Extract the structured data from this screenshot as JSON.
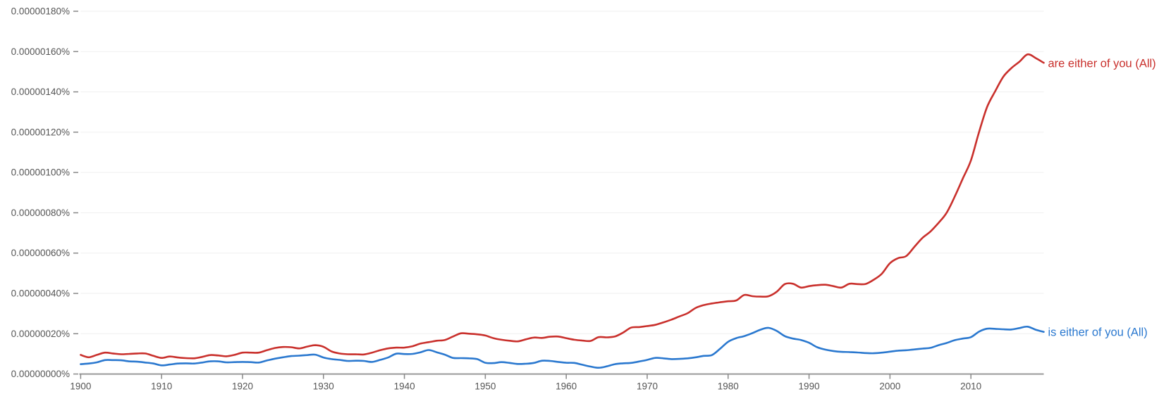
{
  "chart_data": {
    "type": "line",
    "title": "",
    "xlabel": "",
    "ylabel": "",
    "xlim": [
      1900,
      2019
    ],
    "ylim": [
      0,
      1.8e-06
    ],
    "y_unit": "%",
    "grid": true,
    "legend": "line-end labels",
    "x_ticks": [
      "1900",
      "1910",
      "1920",
      "1930",
      "1940",
      "1950",
      "1960",
      "1970",
      "1980",
      "1990",
      "2000",
      "2010"
    ],
    "y_ticks": [
      "0.00000000%",
      "0.00000020%",
      "0.00000040%",
      "0.00000060%",
      "0.00000080%",
      "0.00000100%",
      "0.00000120%",
      "0.00000140%",
      "0.00000160%",
      "0.00000180%"
    ],
    "x_start": 1900,
    "series": [
      {
        "name": "are either of you (All)",
        "color": "#c9302c",
        "values": [
          9.5e-08,
          8.3e-08,
          9.5e-08,
          1.06e-07,
          1.02e-07,
          9.8e-08,
          1e-07,
          1.02e-07,
          1.02e-07,
          9e-08,
          8e-08,
          8.7e-08,
          8.2e-08,
          7.9e-08,
          7.8e-08,
          8.5e-08,
          9.4e-08,
          9.2e-08,
          8.8e-08,
          9.5e-08,
          1.06e-07,
          1.06e-07,
          1.06e-07,
          1.18e-07,
          1.29e-07,
          1.34e-07,
          1.33e-07,
          1.27e-07,
          1.36e-07,
          1.43e-07,
          1.35e-07,
          1.12e-07,
          1.02e-07,
          9.8e-08,
          9.8e-08,
          9.7e-08,
          1.06e-07,
          1.18e-07,
          1.27e-07,
          1.31e-07,
          1.31e-07,
          1.38e-07,
          1.51e-07,
          1.58e-07,
          1.65e-07,
          1.69e-07,
          1.86e-07,
          2.02e-07,
          2e-07,
          1.97e-07,
          1.91e-07,
          1.78e-07,
          1.7e-07,
          1.65e-07,
          1.62e-07,
          1.72e-07,
          1.81e-07,
          1.79e-07,
          1.85e-07,
          1.86e-07,
          1.78e-07,
          1.7e-07,
          1.66e-07,
          1.64e-07,
          1.83e-07,
          1.82e-07,
          1.86e-07,
          2.05e-07,
          2.3e-07,
          2.33e-07,
          2.38e-07,
          2.44e-07,
          2.56e-07,
          2.7e-07,
          2.86e-07,
          3.02e-07,
          3.28e-07,
          3.42e-07,
          3.5e-07,
          3.56e-07,
          3.61e-07,
          3.65e-07,
          3.92e-07,
          3.86e-07,
          3.84e-07,
          3.86e-07,
          4.08e-07,
          4.46e-07,
          4.48e-07,
          4.29e-07,
          4.36e-07,
          4.41e-07,
          4.43e-07,
          4.36e-07,
          4.29e-07,
          4.48e-07,
          4.46e-07,
          4.47e-07,
          4.68e-07,
          4.98e-07,
          5.5e-07,
          5.75e-07,
          5.85e-07,
          6.3e-07,
          6.75e-07,
          7.07e-07,
          7.5e-07,
          8e-07,
          8.8e-07,
          9.7e-07,
          1.06e-06,
          1.2e-06,
          1.325e-06,
          1.403e-06,
          1.475e-06,
          1.518e-06,
          1.55e-06,
          1.586e-06,
          1.568e-06,
          1.544e-06
        ]
      },
      {
        "name": "is either of you (All)",
        "color": "#2a78cf",
        "values": [
          4.9e-08,
          5.2e-08,
          5.8e-08,
          6.9e-08,
          6.9e-08,
          6.8e-08,
          6.3e-08,
          6.1e-08,
          5.7e-08,
          5.2e-08,
          4.3e-08,
          4.7e-08,
          5.2e-08,
          5.3e-08,
          5.2e-08,
          5.7e-08,
          6.3e-08,
          6.3e-08,
          5.8e-08,
          5.9e-08,
          6e-08,
          5.9e-08,
          5.7e-08,
          6.7e-08,
          7.6e-08,
          8.3e-08,
          8.9e-08,
          9.1e-08,
          9.4e-08,
          9.6e-08,
          8.2e-08,
          7.4e-08,
          7e-08,
          6.5e-08,
          6.6e-08,
          6.5e-08,
          6e-08,
          7e-08,
          8.2e-08,
          1.01e-07,
          9.9e-08,
          1e-07,
          1.08e-07,
          1.19e-07,
          1.08e-07,
          9.6e-08,
          8e-08,
          7.9e-08,
          7.8e-08,
          7.4e-08,
          5.6e-08,
          5.4e-08,
          5.9e-08,
          5.5e-08,
          5e-08,
          5.1e-08,
          5.5e-08,
          6.6e-08,
          6.5e-08,
          6e-08,
          5.6e-08,
          5.5e-08,
          4.6e-08,
          3.7e-08,
          3.1e-08,
          3.8e-08,
          4.9e-08,
          5.3e-08,
          5.5e-08,
          6.2e-08,
          7e-08,
          8e-08,
          7.8e-08,
          7.4e-08,
          7.5e-08,
          7.8e-08,
          8.3e-08,
          9e-08,
          9.4e-08,
          1.25e-07,
          1.6e-07,
          1.78e-07,
          1.88e-07,
          2.03e-07,
          2.2e-07,
          2.29e-07,
          2.14e-07,
          1.88e-07,
          1.76e-07,
          1.69e-07,
          1.55e-07,
          1.33e-07,
          1.21e-07,
          1.14e-07,
          1.1e-07,
          1.09e-07,
          1.07e-07,
          1.04e-07,
          1.03e-07,
          1.06e-07,
          1.11e-07,
          1.16e-07,
          1.18e-07,
          1.22e-07,
          1.26e-07,
          1.3e-07,
          1.43e-07,
          1.54e-07,
          1.68e-07,
          1.76e-07,
          1.83e-07,
          2.1e-07,
          2.25e-07,
          2.24e-07,
          2.22e-07,
          2.21e-07,
          2.28e-07,
          2.35e-07,
          2.2e-07,
          2.09e-07
        ]
      }
    ]
  }
}
